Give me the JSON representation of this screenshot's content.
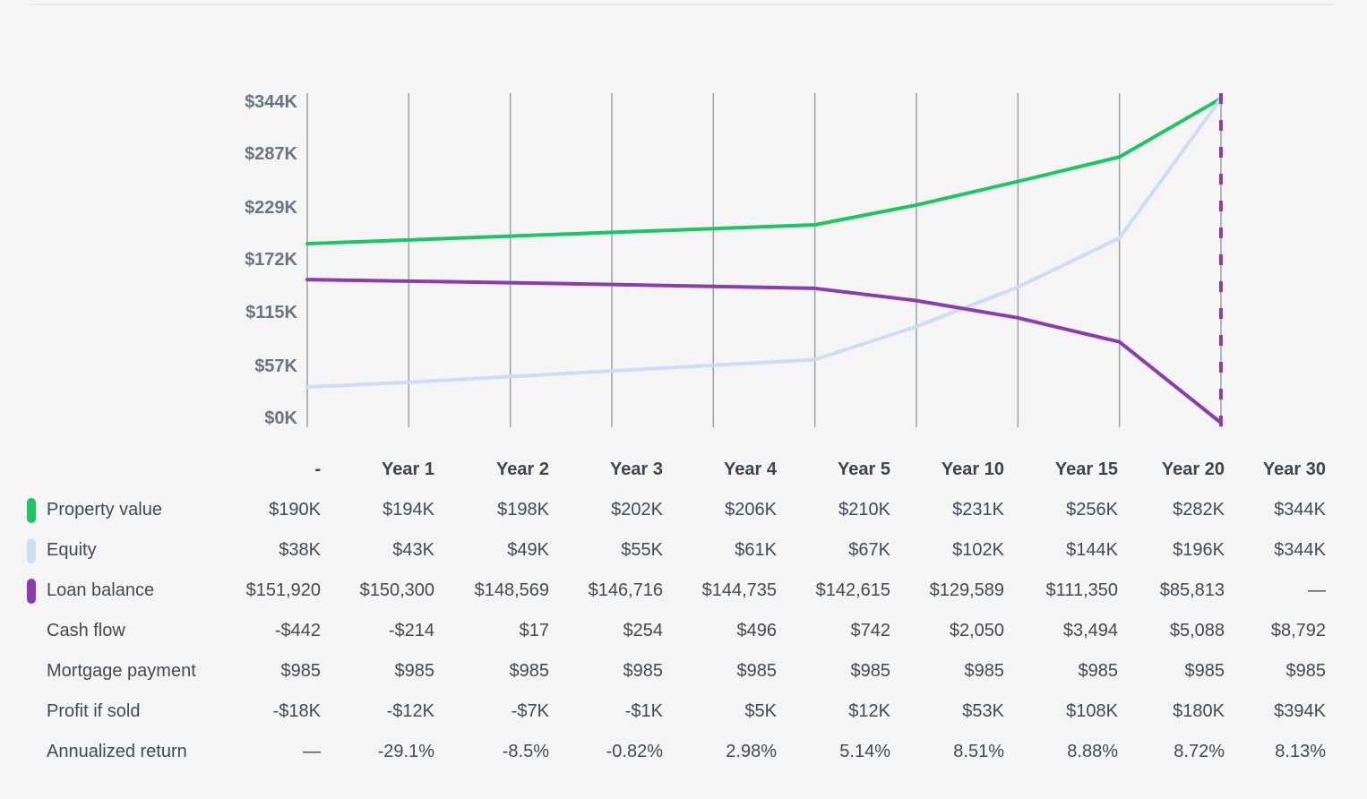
{
  "colors": {
    "background": "#f5f5f6",
    "divider": "#e9e9eb",
    "gridline": "#9aa1a8",
    "axis_text": "#6b7582",
    "table_text": "#414a52",
    "property_value": "#1fc463",
    "equity": "#cdddf2",
    "loan_balance": "#8b3dad"
  },
  "chart_data": {
    "type": "line",
    "title": "",
    "xlabel": "",
    "ylabel": "",
    "categories": [
      "-",
      "Year 1",
      "Year 2",
      "Year 3",
      "Year 4",
      "Year 5",
      "Year 10",
      "Year 15",
      "Year 20",
      "Year 30"
    ],
    "ylim": [
      0,
      344
    ],
    "grid": "vertical",
    "legend_position": "table-left",
    "y_ticks": [
      {
        "label": "$344K",
        "value": 344
      },
      {
        "label": "$287K",
        "value": 287
      },
      {
        "label": "$229K",
        "value": 229
      },
      {
        "label": "$172K",
        "value": 172
      },
      {
        "label": "$115K",
        "value": 115
      },
      {
        "label": "$57K",
        "value": 57
      },
      {
        "label": "$0K",
        "value": 0
      }
    ],
    "series": [
      {
        "name": "Property value",
        "color": "#1fc463",
        "unit": "K USD",
        "values": [
          190,
          194,
          198,
          202,
          206,
          210,
          231,
          256,
          282,
          344
        ]
      },
      {
        "name": "Equity",
        "color": "#cdddf2",
        "unit": "K USD",
        "values": [
          38,
          43,
          49,
          55,
          61,
          67,
          102,
          144,
          196,
          344
        ]
      },
      {
        "name": "Loan balance",
        "color": "#8b3dad",
        "unit": "K USD",
        "values": [
          151.92,
          150.3,
          148.569,
          146.716,
          144.735,
          142.615,
          129.589,
          111.35,
          85.813,
          0
        ]
      }
    ],
    "end_marker": {
      "type": "dashed-vertical-line",
      "at_category": "Year 30",
      "color": "#8b3dad"
    }
  },
  "table": {
    "columns": [
      "",
      "-",
      "Year 1",
      "Year 2",
      "Year 3",
      "Year 4",
      "Year 5",
      "Year 10",
      "Year 15",
      "Year 20",
      "Year 30"
    ],
    "rows": [
      {
        "label": "Property value",
        "swatch": "#1fc463",
        "values": [
          "$190K",
          "$194K",
          "$198K",
          "$202K",
          "$206K",
          "$210K",
          "$231K",
          "$256K",
          "$282K",
          "$344K"
        ]
      },
      {
        "label": "Equity",
        "swatch": "#cdddf2",
        "values": [
          "$38K",
          "$43K",
          "$49K",
          "$55K",
          "$61K",
          "$67K",
          "$102K",
          "$144K",
          "$196K",
          "$344K"
        ]
      },
      {
        "label": "Loan balance",
        "swatch": "#8b3dad",
        "values": [
          "$151,920",
          "$150,300",
          "$148,569",
          "$146,716",
          "$144,735",
          "$142,615",
          "$129,589",
          "$111,350",
          "$85,813",
          "—"
        ]
      },
      {
        "label": "Cash flow",
        "swatch": null,
        "values": [
          "-$442",
          "-$214",
          "$17",
          "$254",
          "$496",
          "$742",
          "$2,050",
          "$3,494",
          "$5,088",
          "$8,792"
        ]
      },
      {
        "label": "Mortgage payment",
        "swatch": null,
        "values": [
          "$985",
          "$985",
          "$985",
          "$985",
          "$985",
          "$985",
          "$985",
          "$985",
          "$985",
          "$985"
        ]
      },
      {
        "label": "Profit if sold",
        "swatch": null,
        "values": [
          "-$18K",
          "-$12K",
          "-$7K",
          "-$1K",
          "$5K",
          "$12K",
          "$53K",
          "$108K",
          "$180K",
          "$394K"
        ]
      },
      {
        "label": "Annualized return",
        "swatch": null,
        "values": [
          "—",
          "-29.1%",
          "-8.5%",
          "-0.82%",
          "2.98%",
          "5.14%",
          "8.51%",
          "8.88%",
          "8.72%",
          "8.13%"
        ]
      }
    ]
  }
}
